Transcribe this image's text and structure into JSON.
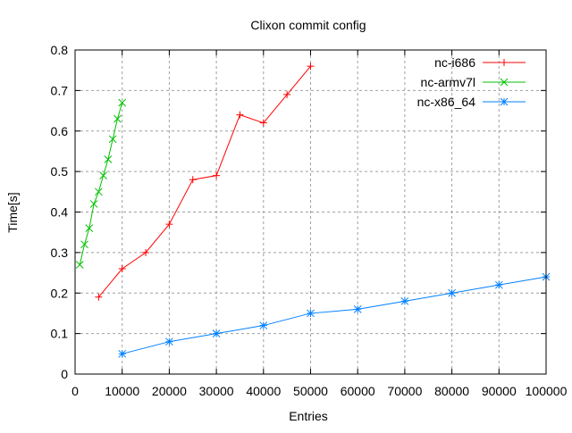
{
  "chart_data": {
    "type": "line",
    "title": "Clixon commit config",
    "xlabel": "Entries",
    "ylabel": "Time[s]",
    "xlim": [
      0,
      100000
    ],
    "ylim": [
      0,
      0.8
    ],
    "xticks": [
      0,
      10000,
      20000,
      30000,
      40000,
      50000,
      60000,
      70000,
      80000,
      90000,
      100000
    ],
    "yticks": [
      0,
      0.1,
      0.2,
      0.3,
      0.4,
      0.5,
      0.6,
      0.7,
      0.8
    ],
    "grid": true,
    "legend_position": "top-right",
    "series": [
      {
        "name": "nc-i686",
        "color": "#ff0000",
        "marker": "plus",
        "x": [
          5000,
          10000,
          15000,
          20000,
          25000,
          30000,
          35000,
          40000,
          45000,
          50000
        ],
        "y": [
          0.19,
          0.26,
          0.3,
          0.37,
          0.48,
          0.49,
          0.64,
          0.62,
          0.69,
          0.76
        ]
      },
      {
        "name": "nc-armv7l",
        "color": "#00c000",
        "marker": "cross",
        "x": [
          1000,
          2000,
          3000,
          4000,
          5000,
          6000,
          7000,
          8000,
          9000,
          10000
        ],
        "y": [
          0.27,
          0.32,
          0.36,
          0.42,
          0.45,
          0.49,
          0.53,
          0.58,
          0.63,
          0.67
        ]
      },
      {
        "name": "nc-x86_64",
        "color": "#0080ff",
        "marker": "star",
        "x": [
          10000,
          20000,
          30000,
          40000,
          50000,
          60000,
          70000,
          80000,
          90000,
          100000
        ],
        "y": [
          0.05,
          0.08,
          0.1,
          0.12,
          0.15,
          0.16,
          0.18,
          0.2,
          0.22,
          0.24
        ]
      }
    ]
  }
}
